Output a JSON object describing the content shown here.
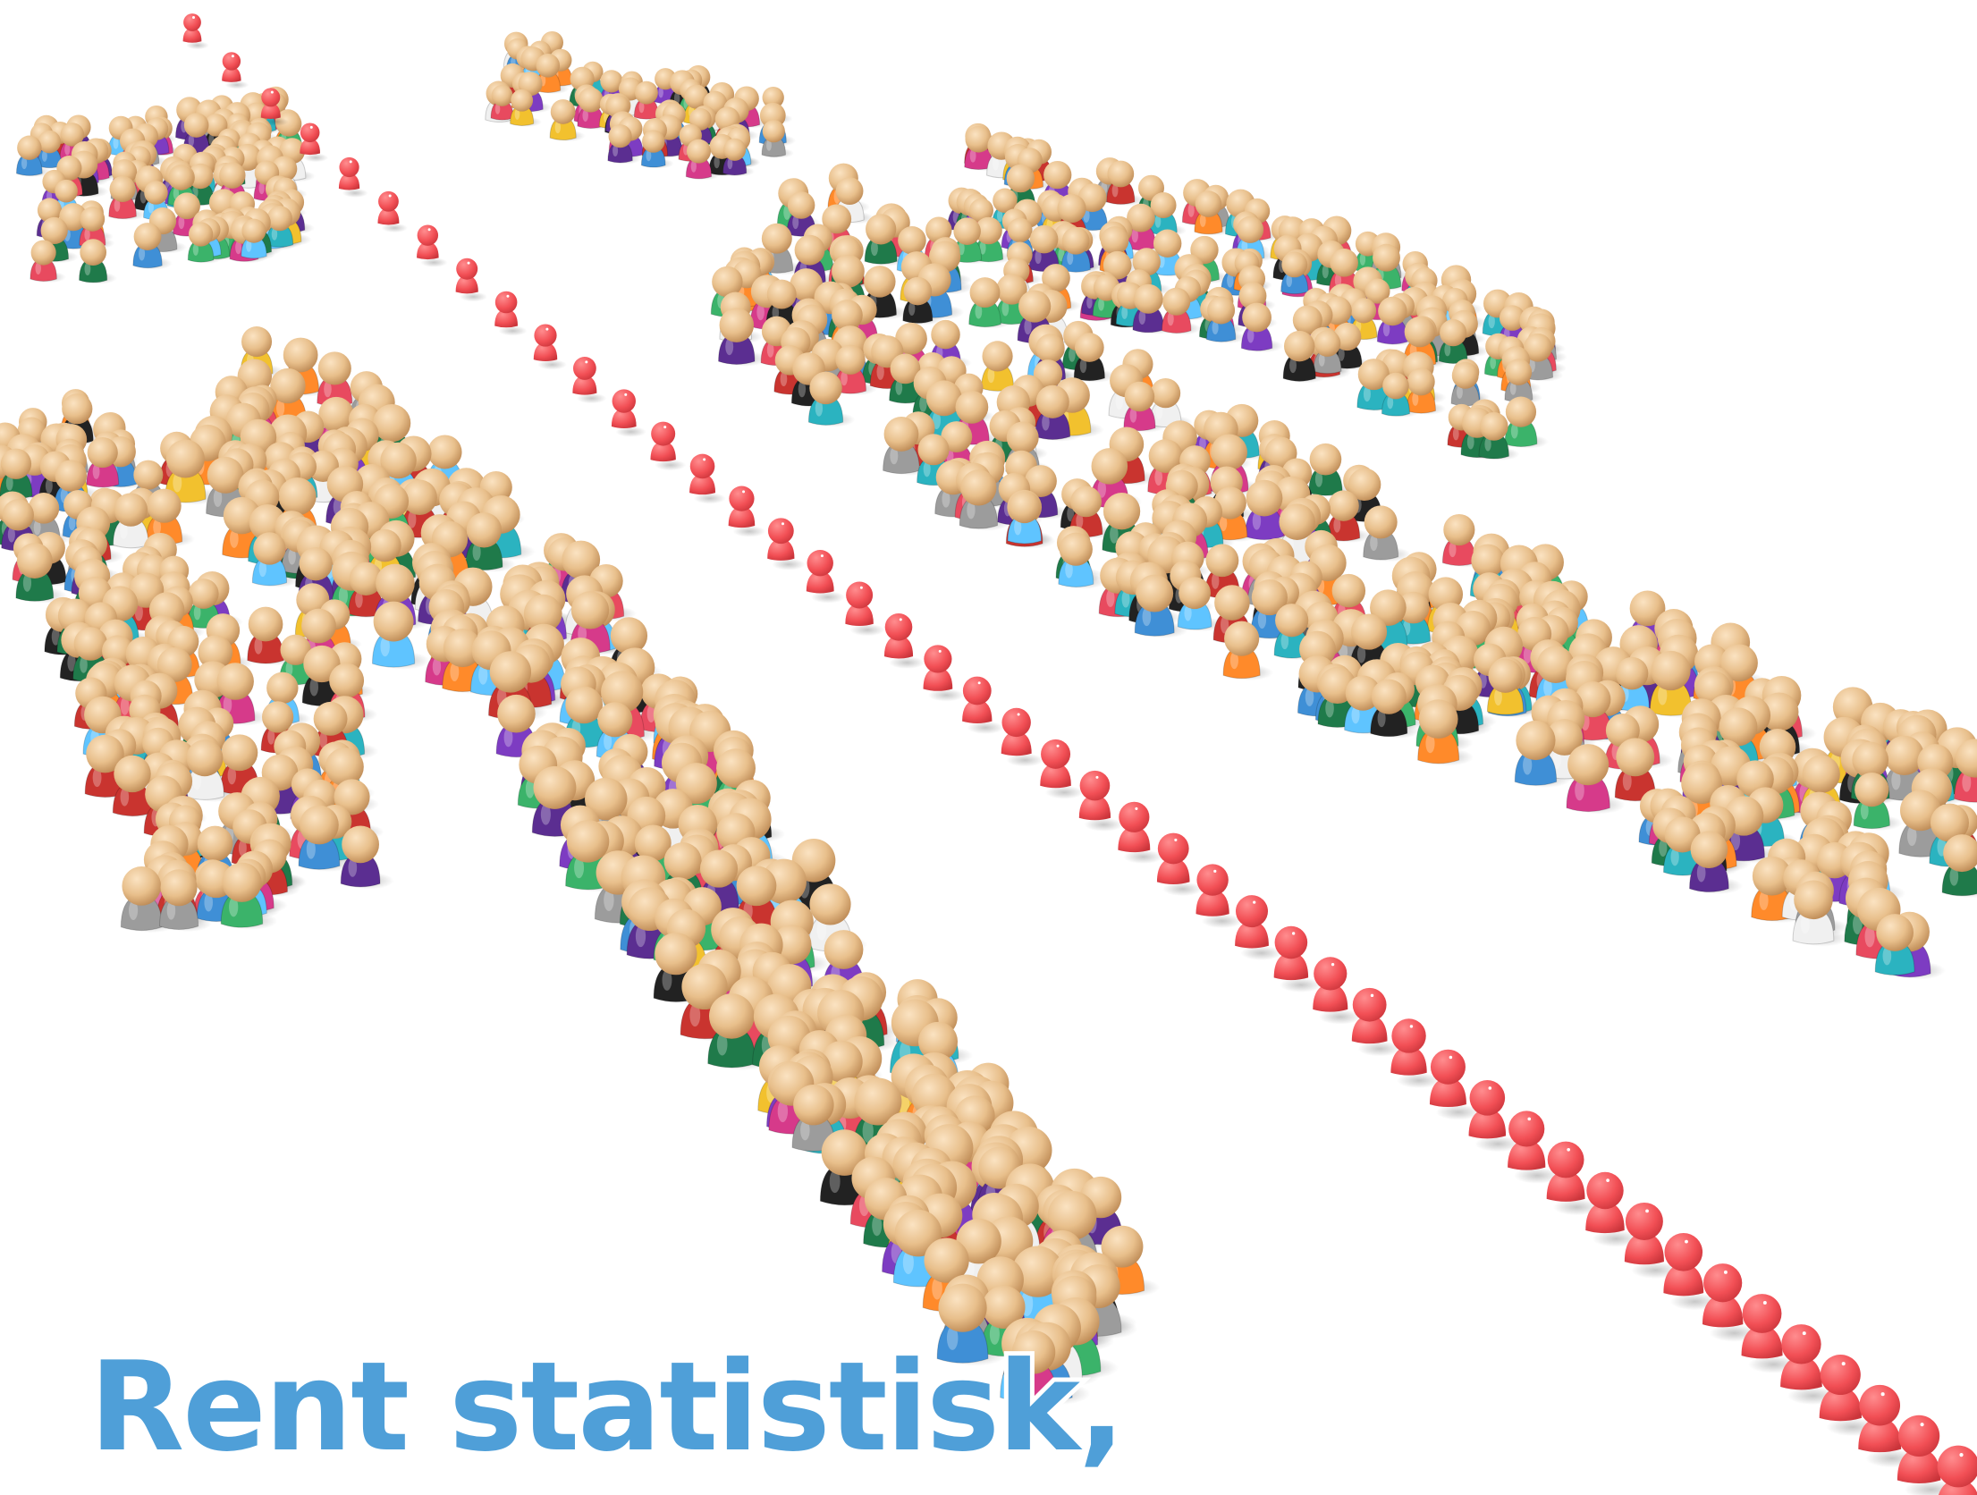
{
  "caption": {
    "text": "Rent statistisk,",
    "color": "#4f9fd8"
  },
  "scene": {
    "background": "#ffffff",
    "figure_skin": "#e8bf8b",
    "red_figure_color": "#f24f55",
    "shirt_palette": [
      "#3f8fd6",
      "#7d3cc2",
      "#3bb36a",
      "#e84a5f",
      "#f2c12e",
      "#2bb3c0",
      "#ff8a2a",
      "#9c9c9c",
      "#5b2e91",
      "#d63a8a",
      "#1f7a4a",
      "#f0f0f0",
      "#c9342f",
      "#5fc4ff",
      "#222222"
    ]
  }
}
